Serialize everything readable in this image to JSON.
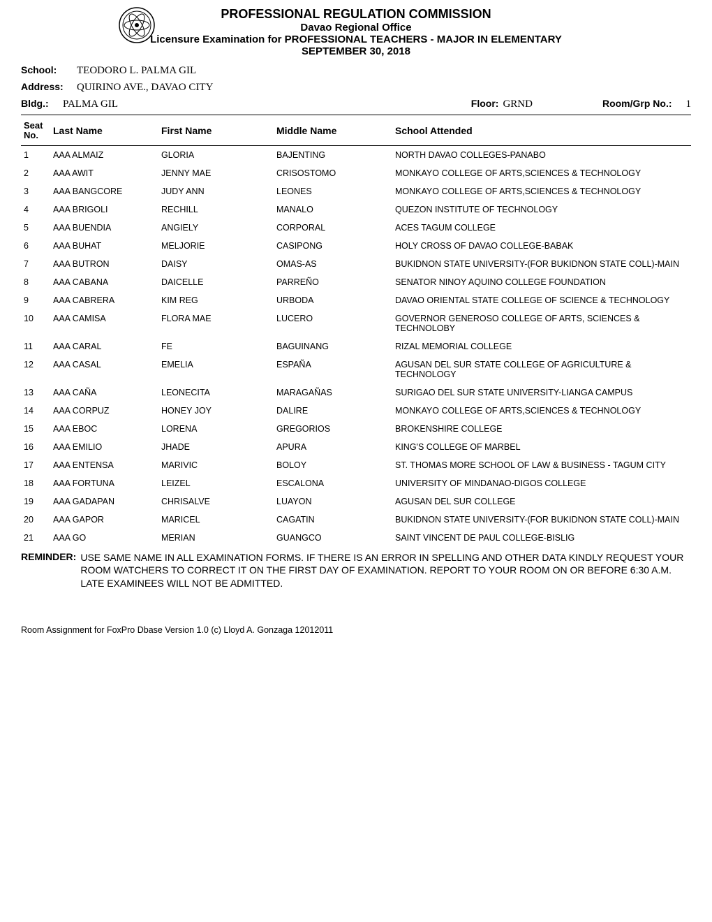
{
  "header": {
    "title": "PROFESSIONAL REGULATION COMMISSION",
    "office": "Davao Regional Office",
    "exam": "Licensure Examination for PROFESSIONAL TEACHERS - MAJOR IN ELEMENTARY",
    "date": "SEPTEMBER 30, 2018"
  },
  "info": {
    "school_label": "School:",
    "school_value": "TEODORO L. PALMA  GIL",
    "address_label": "Address:",
    "address_value": "QUIRINO AVE., DAVAO CITY",
    "bldg_label": "Bldg.:",
    "bldg_value": "PALMA GIL",
    "floor_label": "Floor:",
    "floor_value": "GRND",
    "room_label": "Room/Grp No.:",
    "room_value": "1"
  },
  "columns": {
    "seat": "Seat\nNo.",
    "last_name": "Last Name",
    "first_name": "First Name",
    "middle_name": "Middle Name",
    "school_attended": "School Attended"
  },
  "rows": [
    {
      "seat": "1",
      "ln": "AAA ALMAIZ",
      "fn": "GLORIA",
      "mn": "BAJENTING",
      "sc": "NORTH DAVAO COLLEGES-PANABO"
    },
    {
      "seat": "2",
      "ln": "AAA AWIT",
      "fn": "JENNY MAE",
      "mn": "CRISOSTOMO",
      "sc": "MONKAYO COLLEGE OF ARTS,SCIENCES & TECHNOLOGY"
    },
    {
      "seat": "3",
      "ln": "AAA BANGCORE",
      "fn": "JUDY ANN",
      "mn": "LEONES",
      "sc": "MONKAYO COLLEGE OF ARTS,SCIENCES & TECHNOLOGY"
    },
    {
      "seat": "4",
      "ln": "AAA BRIGOLI",
      "fn": "RECHILL",
      "mn": "MANALO",
      "sc": "QUEZON INSTITUTE OF TECHNOLOGY"
    },
    {
      "seat": "5",
      "ln": "AAA BUENDIA",
      "fn": "ANGIELY",
      "mn": "CORPORAL",
      "sc": "ACES TAGUM COLLEGE"
    },
    {
      "seat": "6",
      "ln": "AAA BUHAT",
      "fn": "MELJORIE",
      "mn": "CASIPONG",
      "sc": "HOLY CROSS OF DAVAO COLLEGE-BABAK"
    },
    {
      "seat": "7",
      "ln": "AAA BUTRON",
      "fn": "DAISY",
      "mn": "OMAS-AS",
      "sc": "BUKIDNON STATE UNIVERSITY-(FOR BUKIDNON STATE COLL)-MAIN"
    },
    {
      "seat": "8",
      "ln": "AAA CABANA",
      "fn": "DAICELLE",
      "mn": "PARREÑO",
      "sc": "SENATOR NINOY AQUINO COLLEGE FOUNDATION"
    },
    {
      "seat": "9",
      "ln": "AAA CABRERA",
      "fn": "KIM REG",
      "mn": "URBODA",
      "sc": "DAVAO ORIENTAL STATE COLLEGE OF SCIENCE & TECHNOLOGY"
    },
    {
      "seat": "10",
      "ln": "AAA CAMISA",
      "fn": "FLORA MAE",
      "mn": "LUCERO",
      "sc": "GOVERNOR GENEROSO COLLEGE OF ARTS, SCIENCES & TECHNOLOBY"
    },
    {
      "seat": "11",
      "ln": "AAA CARAL",
      "fn": "FE",
      "mn": "BAGUINANG",
      "sc": "RIZAL MEMORIAL COLLEGE"
    },
    {
      "seat": "12",
      "ln": "AAA CASAL",
      "fn": "EMELIA",
      "mn": "ESPAÑA",
      "sc": "AGUSAN DEL SUR STATE COLLEGE OF AGRICULTURE & TECHNOLOGY"
    },
    {
      "seat": "13",
      "ln": "AAA CAÑA",
      "fn": "LEONECITA",
      "mn": "MARAGAÑAS",
      "sc": "SURIGAO DEL SUR STATE UNIVERSITY-LIANGA CAMPUS"
    },
    {
      "seat": "14",
      "ln": "AAA CORPUZ",
      "fn": "HONEY JOY",
      "mn": "DALIRE",
      "sc": "MONKAYO COLLEGE OF ARTS,SCIENCES & TECHNOLOGY"
    },
    {
      "seat": "15",
      "ln": "AAA EBOC",
      "fn": "LORENA",
      "mn": "GREGORIOS",
      "sc": "BROKENSHIRE COLLEGE"
    },
    {
      "seat": "16",
      "ln": "AAA EMILIO",
      "fn": "JHADE",
      "mn": "APURA",
      "sc": "KING'S COLLEGE OF MARBEL"
    },
    {
      "seat": "17",
      "ln": "AAA ENTENSA",
      "fn": "MARIVIC",
      "mn": "BOLOY",
      "sc": "ST. THOMAS MORE SCHOOL OF LAW & BUSINESS - TAGUM CITY"
    },
    {
      "seat": "18",
      "ln": "AAA FORTUNA",
      "fn": "LEIZEL",
      "mn": "ESCALONA",
      "sc": "UNIVERSITY OF MINDANAO-DIGOS COLLEGE"
    },
    {
      "seat": "19",
      "ln": "AAA GADAPAN",
      "fn": "CHRISALVE",
      "mn": "LUAYON",
      "sc": "AGUSAN DEL SUR COLLEGE"
    },
    {
      "seat": "20",
      "ln": "AAA GAPOR",
      "fn": "MARICEL",
      "mn": "CAGATIN",
      "sc": "BUKIDNON STATE UNIVERSITY-(FOR BUKIDNON STATE COLL)-MAIN"
    },
    {
      "seat": "21",
      "ln": "AAA GO",
      "fn": "MERIAN",
      "mn": "GUANGCO",
      "sc": "SAINT VINCENT DE PAUL COLLEGE-BISLIG"
    }
  ],
  "reminder": {
    "label": "REMINDER:",
    "text": "USE SAME NAME IN ALL EXAMINATION FORMS. IF THERE IS AN ERROR IN SPELLING AND OTHER DATA KINDLY REQUEST YOUR ROOM WATCHERS TO CORRECT IT ON THE FIRST DAY OF EXAMINATION. REPORT TO YOUR ROOM ON OR BEFORE 6:30 A.M. LATE EXAMINEES WILL NOT BE ADMITTED."
  },
  "footer": "Room Assignment for FoxPro Dbase Version 1.0 (c) Lloyd A. Gonzaga 12012011"
}
